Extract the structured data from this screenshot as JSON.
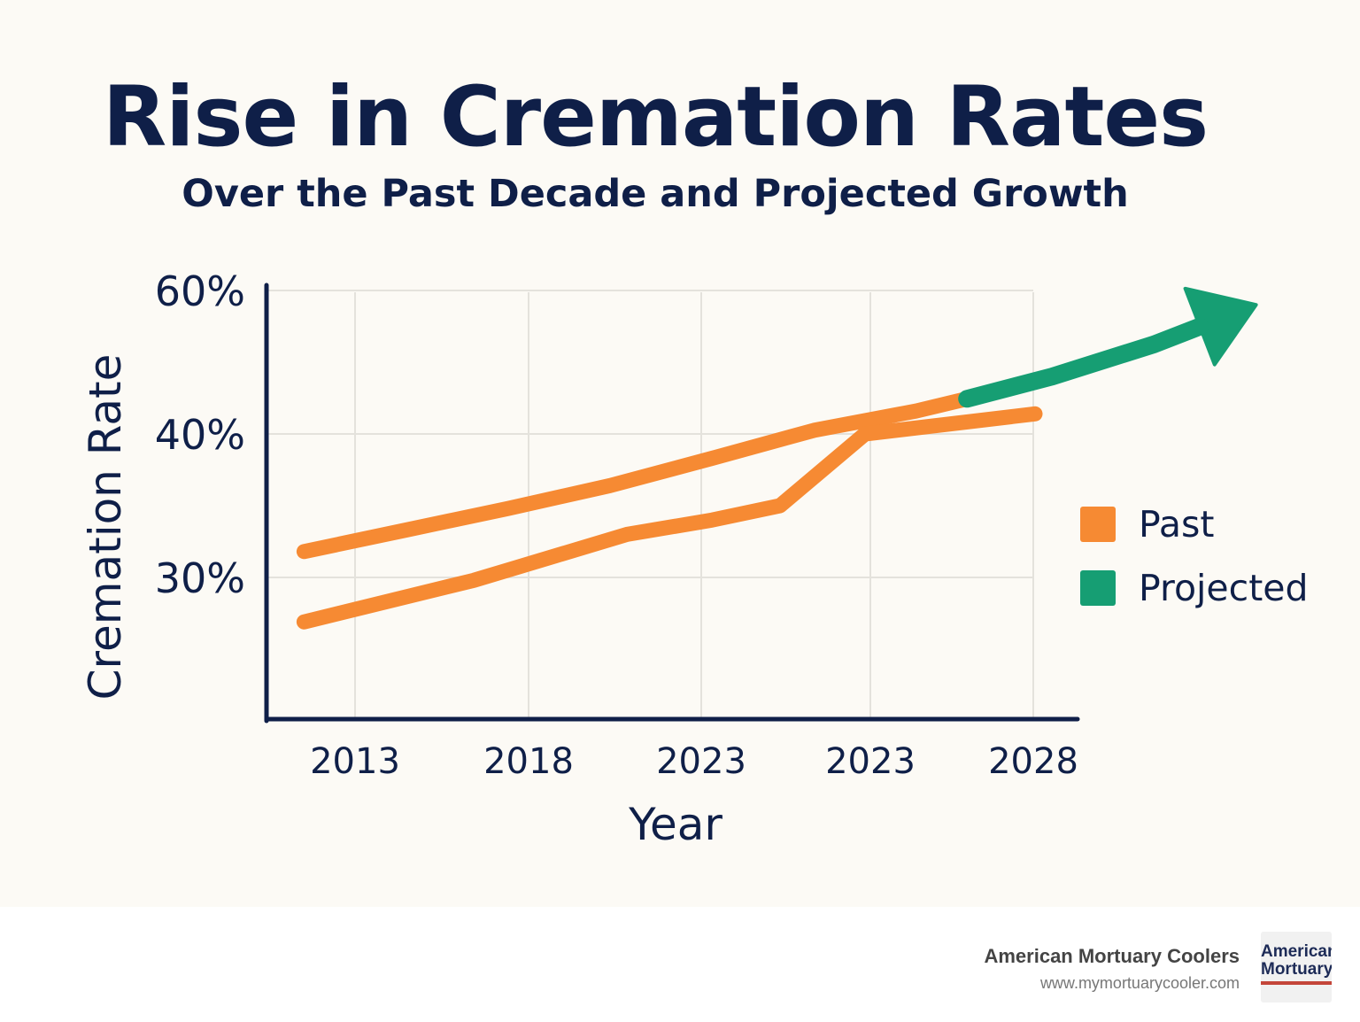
{
  "colors": {
    "background": "#fcfaf5",
    "text": "#0f1f48",
    "past": "#f68a33",
    "projected": "#169e73",
    "grid": "#e4e2dc"
  },
  "chart_data": {
    "type": "line",
    "title": "Rise in Cremation Rates",
    "subtitle": "Over the Past Decade and Projected Growth",
    "xlabel": "Year",
    "ylabel": "Cremation Rate",
    "x_tick_labels": [
      "2013",
      "2018",
      "2023",
      "2023",
      "2028"
    ],
    "y_tick_labels": [
      "30%",
      "40%",
      "60%"
    ],
    "y_tick_values": [
      30,
      40,
      60
    ],
    "grid": true,
    "legend_position": "right",
    "legend": [
      {
        "label": "Past",
        "color": "#f68a33"
      },
      {
        "label": "Projected",
        "color": "#169e73"
      }
    ],
    "series": [
      {
        "name": "Past",
        "color": "#f68a33",
        "points": [
          [
            2011.5,
            31.8
          ],
          [
            2014.5,
            33.3
          ],
          [
            2017.5,
            34.8
          ],
          [
            2020.5,
            36.4
          ],
          [
            2023.5,
            38.3
          ],
          [
            2026.5,
            40.5
          ],
          [
            2029.5,
            43.2
          ],
          [
            2031.0,
            44.9
          ]
        ]
      },
      {
        "name": "Projected",
        "color": "#169e73",
        "arrow": true,
        "points": [
          [
            2031.0,
            44.9
          ],
          [
            2033.5,
            48.0
          ],
          [
            2036.5,
            52.5
          ],
          [
            2039.5,
            58.0
          ]
        ]
      },
      {
        "name": "Past",
        "color": "#f68a33",
        "points": [
          [
            2011.5,
            26.9
          ],
          [
            2016.5,
            29.8
          ],
          [
            2021.0,
            33.0
          ],
          [
            2023.5,
            34.0
          ],
          [
            2025.5,
            35.0
          ],
          [
            2028.0,
            40.0
          ],
          [
            2033.0,
            42.8
          ]
        ]
      }
    ]
  },
  "footer": {
    "brand": "American Mortuary Coolers",
    "url": "www.mymortuarycooler.com",
    "logo_line1": "American",
    "logo_line2": "Mortuary"
  }
}
